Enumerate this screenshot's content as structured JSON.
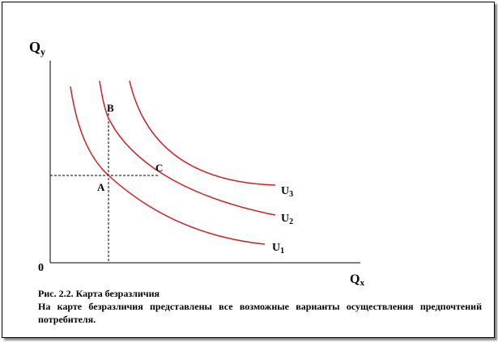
{
  "axes": {
    "y_label": {
      "main": "Q",
      "sub": "y"
    },
    "x_label": {
      "main": "Q",
      "sub": "x"
    },
    "origin": "0"
  },
  "points": [
    {
      "label": "A"
    },
    {
      "label": "B"
    },
    {
      "label": "C"
    }
  ],
  "curves": [
    {
      "main": "U",
      "sub": "1"
    },
    {
      "main": "U",
      "sub": "2"
    },
    {
      "main": "U",
      "sub": "3"
    }
  ],
  "caption": {
    "title": "Рис. 2.2. Карта безразличия",
    "text": "На карте безразличия представлены все возможные варианты осуществления предпочтений потребителя."
  }
}
